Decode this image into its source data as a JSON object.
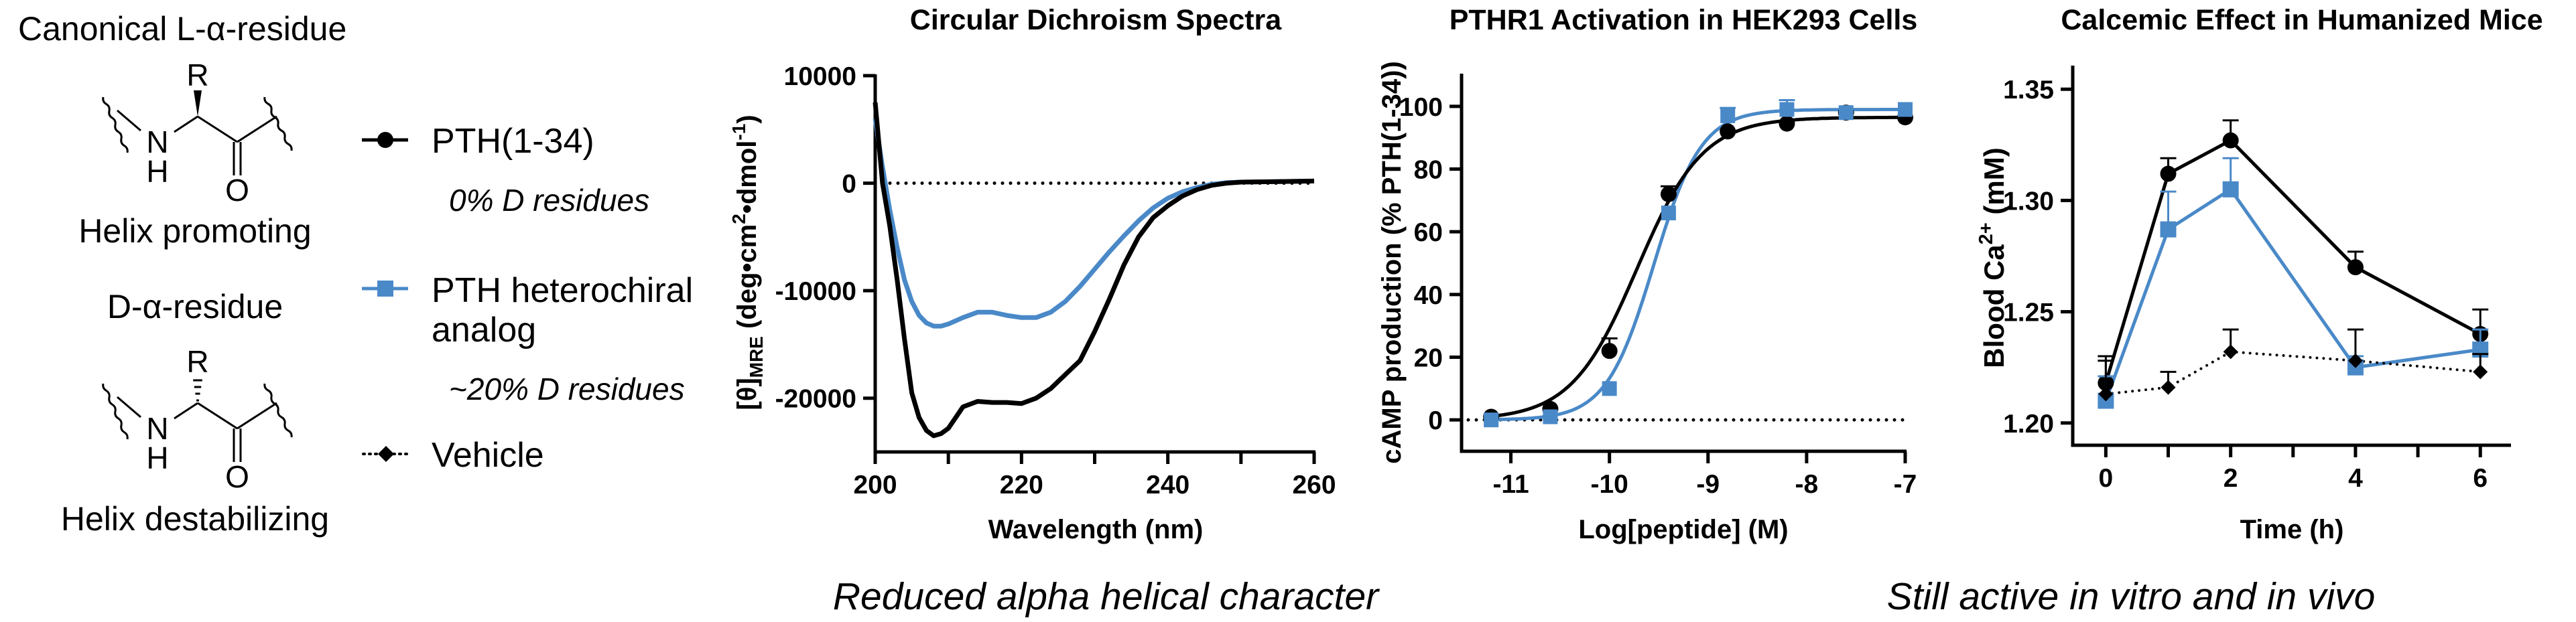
{
  "left_panel": {
    "l_title": "Canonical L-α-residue",
    "l_caption": "Helix promoting",
    "d_title": "D-α-residue",
    "d_caption": "Helix destabilizing",
    "atoms": {
      "r": "R",
      "n": "N",
      "h": "H",
      "o": "O"
    }
  },
  "legend": {
    "items": [
      {
        "label": "PTH(1-34)",
        "note": "0% D residues",
        "color": "#000000",
        "marker": "circle",
        "line": "solid"
      },
      {
        "label": "PTH heterochiral",
        "label2": "analog",
        "note": "~20% D residues",
        "color": "#4a89c8",
        "marker": "square",
        "line": "solid"
      },
      {
        "label": "Vehicle",
        "color": "#000000",
        "marker": "diamond",
        "line": "dotted"
      }
    ]
  },
  "captions": {
    "cd": "Reduced alpha helical character",
    "activity": "Still active in vitro and in vivo"
  },
  "chart_data": [
    {
      "type": "line",
      "title": "Circular Dichroism Spectra",
      "xlabel": "Wavelength (nm)",
      "ylabel_parts": [
        "[θ]",
        "MRE",
        " (deg•cm",
        "2",
        "•dmol",
        "-1",
        ")"
      ],
      "xlim": [
        200,
        260
      ],
      "ylim": [
        -25000,
        10000
      ],
      "xticks": [
        200,
        210,
        220,
        230,
        240,
        250,
        260
      ],
      "xtick_labels": [
        "200",
        "220",
        "240",
        "260"
      ],
      "xtick_label_values": [
        200,
        220,
        240,
        260
      ],
      "yticks": [
        -20000,
        -10000,
        0,
        10000
      ],
      "ytick_labels": [
        "-20000",
        "-10000",
        "0",
        "10000"
      ],
      "reference_line": 0,
      "x": [
        200,
        201,
        202,
        203,
        204,
        205,
        206,
        207,
        208,
        209,
        210,
        212,
        214,
        216,
        218,
        220,
        222,
        224,
        226,
        228,
        230,
        232,
        234,
        236,
        238,
        240,
        242,
        244,
        246,
        248,
        250,
        255,
        260
      ],
      "series": [
        {
          "name": "PTH(1-34)",
          "color": "#000000",
          "values": [
            7500,
            0,
            -4000,
            -9000,
            -14500,
            -19500,
            -21800,
            -23000,
            -23500,
            -23300,
            -22800,
            -20800,
            -20300,
            -20400,
            -20400,
            -20500,
            -20000,
            -19100,
            -17800,
            -16500,
            -13800,
            -10800,
            -7600,
            -5000,
            -3200,
            -2100,
            -1200,
            -600,
            -200,
            0,
            100,
            150,
            200
          ]
        },
        {
          "name": "PTH heterochiral analog",
          "color": "#4a89c8",
          "values": [
            6000,
            1500,
            -2500,
            -6000,
            -9000,
            -11000,
            -12300,
            -13000,
            -13300,
            -13300,
            -13100,
            -12500,
            -12000,
            -12000,
            -12300,
            -12500,
            -12500,
            -12000,
            -11000,
            -9600,
            -8000,
            -6400,
            -4900,
            -3500,
            -2300,
            -1400,
            -800,
            -400,
            -100,
            50,
            100,
            150,
            200
          ]
        }
      ]
    },
    {
      "type": "scatter",
      "title": "PTHR1 Activation in HEK293 Cells",
      "xlabel": "Log[peptide] (M)",
      "ylabel": "cAMP production (% PTH(1-34))",
      "xlim": [
        -11.5,
        -7
      ],
      "ylim": [
        -10,
        110
      ],
      "xticks": [
        -11,
        -10,
        -9,
        -8,
        -7
      ],
      "xtick_labels": [
        "-11",
        "-10",
        "-9",
        "-8",
        "-7"
      ],
      "yticks": [
        0,
        20,
        40,
        60,
        80,
        100
      ],
      "ytick_labels": [
        "0",
        "20",
        "40",
        "60",
        "80",
        "100"
      ],
      "reference_line": 0,
      "x": [
        -11.2,
        -10.6,
        -10.0,
        -9.4,
        -8.8,
        -8.2,
        -7.6,
        -7.0
      ],
      "series": [
        {
          "name": "PTH(1-34)",
          "color": "#000000",
          "marker": "circle",
          "values": [
            1,
            3.5,
            22,
            72,
            92,
            94.5,
            98,
            96.5
          ],
          "errors": [
            0.5,
            0.5,
            4,
            2.5,
            1,
            1,
            0.5,
            0.5
          ],
          "fit": {
            "bottom": 0,
            "top": 96.5,
            "log_ec50": -9.72,
            "hill": 1.3
          }
        },
        {
          "name": "PTH heterochiral analog",
          "color": "#4a89c8",
          "marker": "square",
          "values": [
            0,
            1,
            10,
            66,
            97,
            99,
            98,
            99
          ],
          "errors": [
            0.5,
            0.5,
            0.5,
            1,
            2.5,
            3,
            0.5,
            0.5
          ],
          "fit": {
            "bottom": 0,
            "top": 99,
            "log_ec50": -9.55,
            "hill": 1.8
          }
        }
      ]
    },
    {
      "type": "line",
      "title": "Calcemic Effect in Humanized Mice",
      "xlabel": "Time (h)",
      "ylabel_parts": [
        "Blood Ca",
        "2+",
        " (mM)"
      ],
      "xlim": [
        -0.53,
        6.47
      ],
      "ylim": [
        1.19,
        1.36
      ],
      "xticks": [
        0,
        1,
        2,
        3,
        4,
        5,
        6
      ],
      "xtick_labels": [
        "0",
        "2",
        "4",
        "6"
      ],
      "xtick_label_values": [
        0,
        2,
        4,
        6
      ],
      "yticks": [
        1.2,
        1.25,
        1.3,
        1.35
      ],
      "ytick_labels": [
        "1.20",
        "1.25",
        "1.30",
        "1.35"
      ],
      "x": [
        0,
        1,
        2,
        4,
        6
      ],
      "series": [
        {
          "name": "PTH(1-34)",
          "color": "#000000",
          "marker": "circle",
          "line": "solid",
          "values": [
            1.218,
            1.312,
            1.327,
            1.27,
            1.24
          ],
          "errors": [
            0.012,
            0.007,
            0.009,
            0.007,
            0.011
          ]
        },
        {
          "name": "PTH heterochiral analog",
          "color": "#4a89c8",
          "marker": "square",
          "line": "solid",
          "values": [
            1.21,
            1.287,
            1.305,
            1.225,
            1.233
          ],
          "errors": [
            0.011,
            0.017,
            0.014,
            0.005,
            0.009
          ]
        },
        {
          "name": "Vehicle",
          "color": "#000000",
          "marker": "diamond",
          "line": "dotted",
          "values": [
            1.213,
            1.216,
            1.232,
            1.228,
            1.223
          ],
          "errors": [
            0.015,
            0.007,
            0.01,
            0.014,
            0.008
          ]
        }
      ]
    }
  ]
}
